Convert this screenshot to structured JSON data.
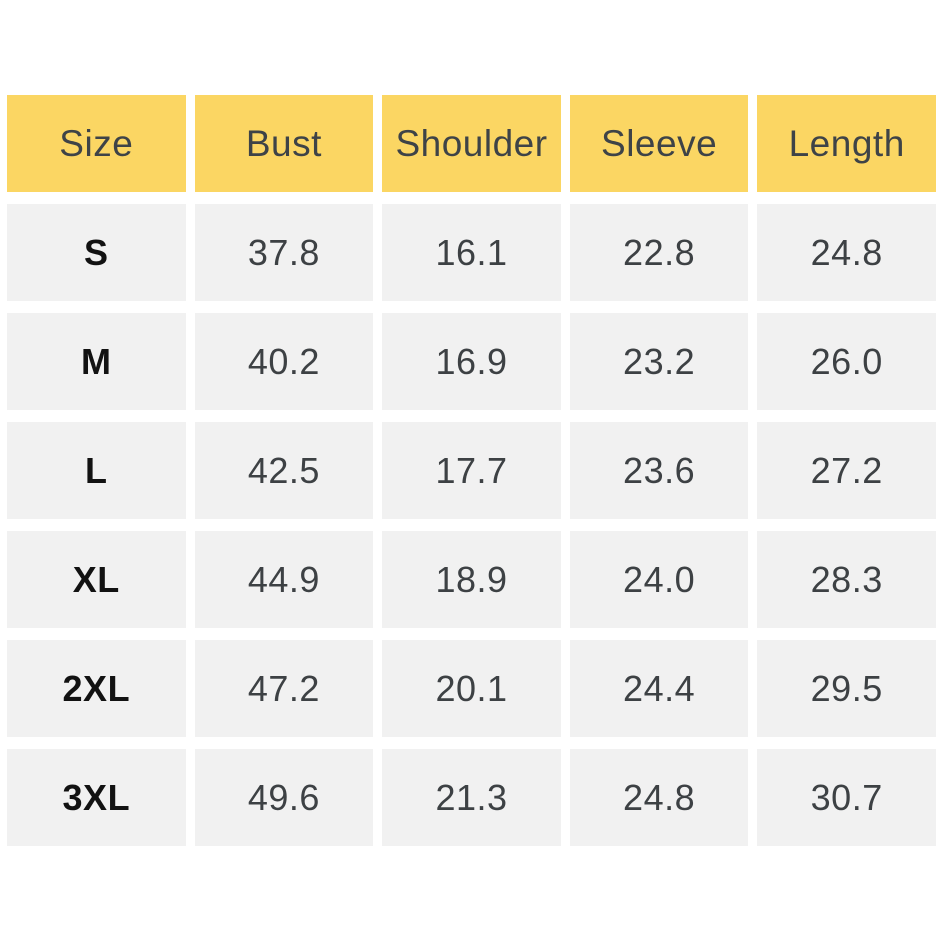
{
  "colors": {
    "header_bg": "#fbd663",
    "cell_bg": "#f1f1f1",
    "header_text": "#3e4347",
    "value_text": "#3d4144",
    "size_text": "#121212",
    "gutter": "#ffffff"
  },
  "table": {
    "headers": [
      "Size",
      "Bust",
      "Shoulder",
      "Sleeve",
      "Length"
    ],
    "rows": [
      [
        "S",
        "37.8",
        "16.1",
        "22.8",
        "24.8"
      ],
      [
        "M",
        "40.2",
        "16.9",
        "23.2",
        "26.0"
      ],
      [
        "L",
        "42.5",
        "17.7",
        "23.6",
        "27.2"
      ],
      [
        "XL",
        "44.9",
        "18.9",
        "24.0",
        "28.3"
      ],
      [
        "2XL",
        "47.2",
        "20.1",
        "24.4",
        "29.5"
      ],
      [
        "3XL",
        "49.6",
        "21.3",
        "24.8",
        "30.7"
      ]
    ]
  }
}
